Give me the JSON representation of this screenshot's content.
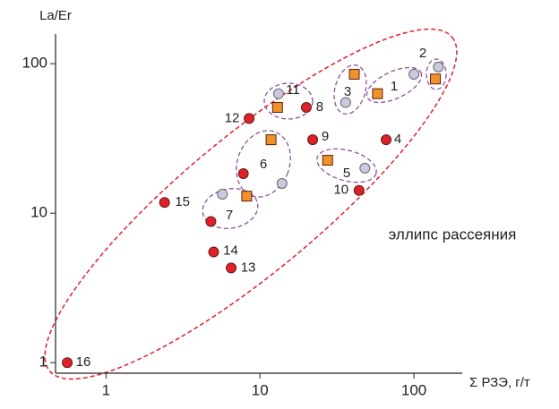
{
  "chart_data": {
    "type": "scatter",
    "x_label": "Σ РЗЭ, г/т",
    "y_label": "La/Er",
    "annotation": "эллипс рассеяния",
    "log_x": true,
    "log_y": true,
    "xlim": [
      0.47,
      206
    ],
    "ylim": [
      0.85,
      158
    ],
    "xticks": [
      1,
      10,
      100
    ],
    "yticks": [
      1,
      10,
      100
    ],
    "group_labels": [
      "1",
      "2",
      "3",
      "5",
      "6",
      "7",
      "11"
    ],
    "series": [
      {
        "color": "#e0202a",
        "marker": "circle",
        "x": [
          0.56,
          2.4,
          4.8,
          5.0,
          6.5,
          7.8,
          8.5,
          20,
          22,
          44,
          66
        ],
        "values": [
          1.0,
          11.8,
          8.8,
          5.5,
          4.3,
          18.4,
          43,
          51,
          31,
          14.2,
          31
        ],
        "labels": [
          "16",
          "15",
          null,
          "14",
          "13",
          null,
          "12",
          "8",
          "9",
          "10",
          "4"
        ]
      },
      {
        "color": "#f0922a",
        "marker": "square",
        "x": [
          8.2,
          11.8,
          13,
          27.5,
          41,
          58,
          138
        ],
        "values": [
          13,
          31,
          51,
          22.6,
          85,
          63,
          79
        ]
      },
      {
        "color": "#c9c9e0",
        "marker": "circle",
        "x": [
          5.7,
          13.9,
          13.2,
          36,
          48,
          100,
          144
        ],
        "values": [
          13.4,
          15.8,
          63,
          55,
          20,
          85,
          95
        ]
      }
    ]
  }
}
